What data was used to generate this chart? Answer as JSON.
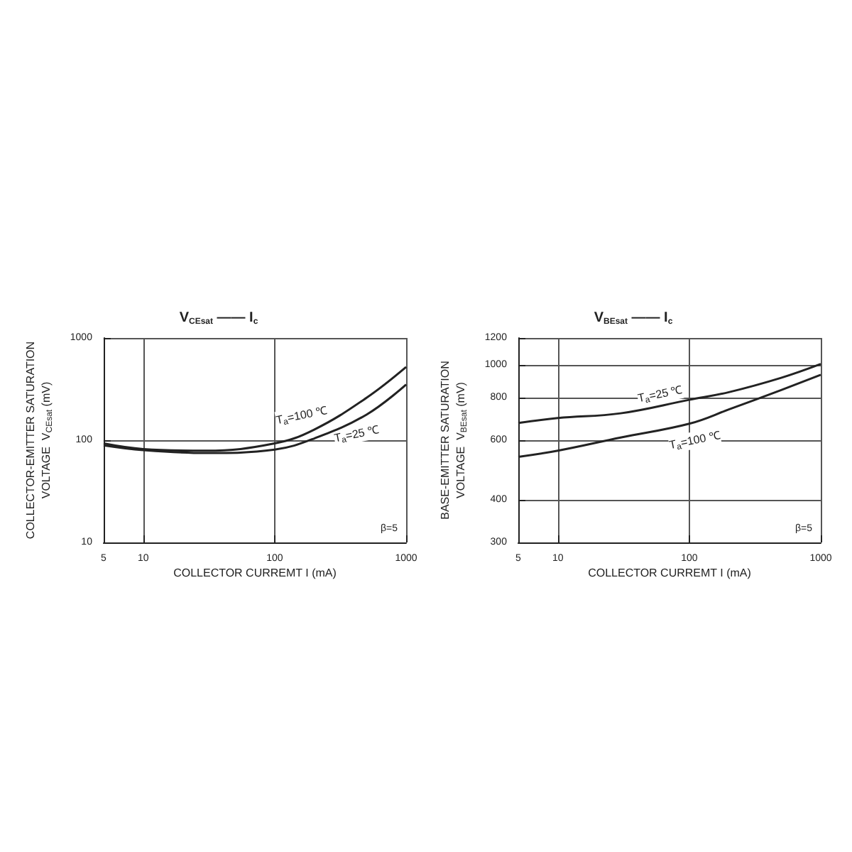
{
  "chart_data": [
    {
      "type": "line",
      "title": "V$_{CEsat}$ —— I$_{c}$",
      "xlabel": "COLLECTOR CURREMT I (mA)",
      "ylabel": "COLLECTOR-EMITTER SATURATION\nVOLTAGE  V$_{CEsat}$ (mV)",
      "log": "xy",
      "xlim": [
        5,
        1000
      ],
      "xticks": [
        5,
        10,
        100,
        1000
      ],
      "ylim": [
        10,
        1000
      ],
      "yticks": [
        10,
        100,
        1000
      ],
      "grid": true,
      "marker": "none",
      "line_style": "solid",
      "series": [
        {
          "color": "#222222",
          "x": [
            5,
            10,
            30,
            100,
            200,
            500,
            1000
          ],
          "values": [
            93,
            82,
            79,
            93,
            127,
            260,
            520
          ]
        },
        {
          "color": "#222222",
          "x": [
            5,
            10,
            30,
            100,
            200,
            500,
            1000
          ],
          "values": [
            89,
            80,
            75,
            81,
            104,
            178,
            350
          ]
        }
      ],
      "annotations": [
        {
          "text": "T$_{a}$=100 ℃",
          "x": 160,
          "y": 175
        },
        {
          "text": "T$_{a}$=25 ℃",
          "x": 420,
          "y": 115
        },
        "β=5"
      ]
    },
    {
      "type": "line",
      "title": "V$_{BEsat}$ —— I$_{c}$",
      "xlabel": "COLLECTOR CURREMT I (mA)",
      "ylabel": "BASE-EMITTER SATURATION\nVOLTAGE  V$_{BEsat}$ (mV)",
      "log": "xy",
      "xlim": [
        5,
        1000
      ],
      "xticks": [
        5,
        10,
        100,
        1000
      ],
      "ylim": [
        300,
        1200
      ],
      "yticks": [
        300,
        400,
        600,
        800,
        1000,
        1200
      ],
      "grid": true,
      "marker": "none",
      "line_style": "solid",
      "series": [
        {
          "color": "#222222",
          "x": [
            5,
            10,
            30,
            100,
            200,
            500,
            1000
          ],
          "values": [
            674,
            697,
            720,
            789,
            831,
            916,
            1006
          ]
        },
        {
          "color": "#222222",
          "x": [
            5,
            10,
            30,
            100,
            200,
            500,
            1000
          ],
          "values": [
            536,
            559,
            611,
            671,
            739,
            843,
            935
          ]
        }
      ],
      "annotations": [
        {
          "text": "T$_{a}$=25 ℃",
          "x": 60,
          "y": 820
        },
        {
          "text": "T$_{a}$=100 ℃",
          "x": 110,
          "y": 600
        },
        "β=5"
      ]
    }
  ]
}
